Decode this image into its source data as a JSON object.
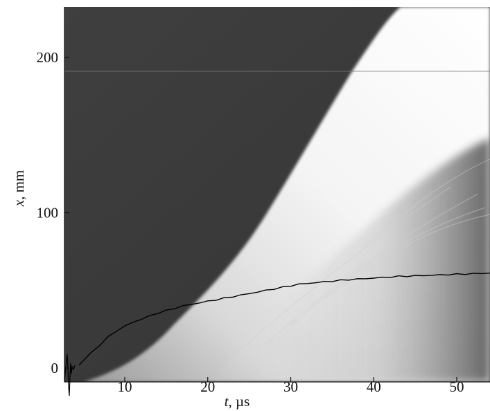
{
  "chart_data": {
    "type": "line",
    "title": "",
    "xlabel": {
      "var": "t",
      "unit": ", µs"
    },
    "ylabel": {
      "var": "x",
      "unit": ", mm"
    },
    "xlim": [
      3.5,
      55
    ],
    "ylim": [
      -5,
      232
    ],
    "x_ticks": [
      10,
      20,
      30,
      40,
      50
    ],
    "x_tick_labels": [
      "10",
      "20",
      "30",
      "40",
      "50"
    ],
    "y_ticks": [
      0,
      100,
      200
    ],
    "y_tick_labels": [
      "0",
      "100",
      "200"
    ],
    "grid": false,
    "legend": "none",
    "background": "streak image (dark grey field with bright luminous front widening with time)",
    "series": [
      {
        "x": [
          4.5,
          5,
          6,
          7,
          8,
          9,
          10,
          11,
          12,
          13,
          14,
          15,
          16,
          17,
          18,
          19,
          20,
          21,
          22,
          23,
          24,
          25,
          26,
          27,
          28,
          29,
          30,
          31,
          32,
          33,
          34,
          35,
          36,
          37,
          38,
          39,
          40,
          41,
          42,
          43,
          44,
          45,
          46,
          47,
          48,
          49,
          50,
          51,
          52,
          53,
          54,
          55
        ],
        "y": [
          2,
          5,
          10,
          15,
          20,
          24,
          27,
          29.5,
          31.5,
          33.5,
          35.5,
          37,
          38.5,
          40,
          41,
          42,
          43,
          44,
          45,
          46,
          47,
          48,
          49,
          50,
          51,
          52,
          53,
          54,
          54.5,
          55,
          55.5,
          56,
          56.5,
          57,
          57.3,
          57.6,
          58,
          58.3,
          58.6,
          59,
          59.2,
          59.4,
          59.6,
          59.8,
          60,
          60.2,
          60.4,
          60.6,
          60.8,
          61,
          61.2,
          61.4
        ]
      }
    ],
    "colors": {
      "line": "#000000",
      "field_dark": "#3a3a3a",
      "front_bright": "#f2f2f2"
    }
  }
}
